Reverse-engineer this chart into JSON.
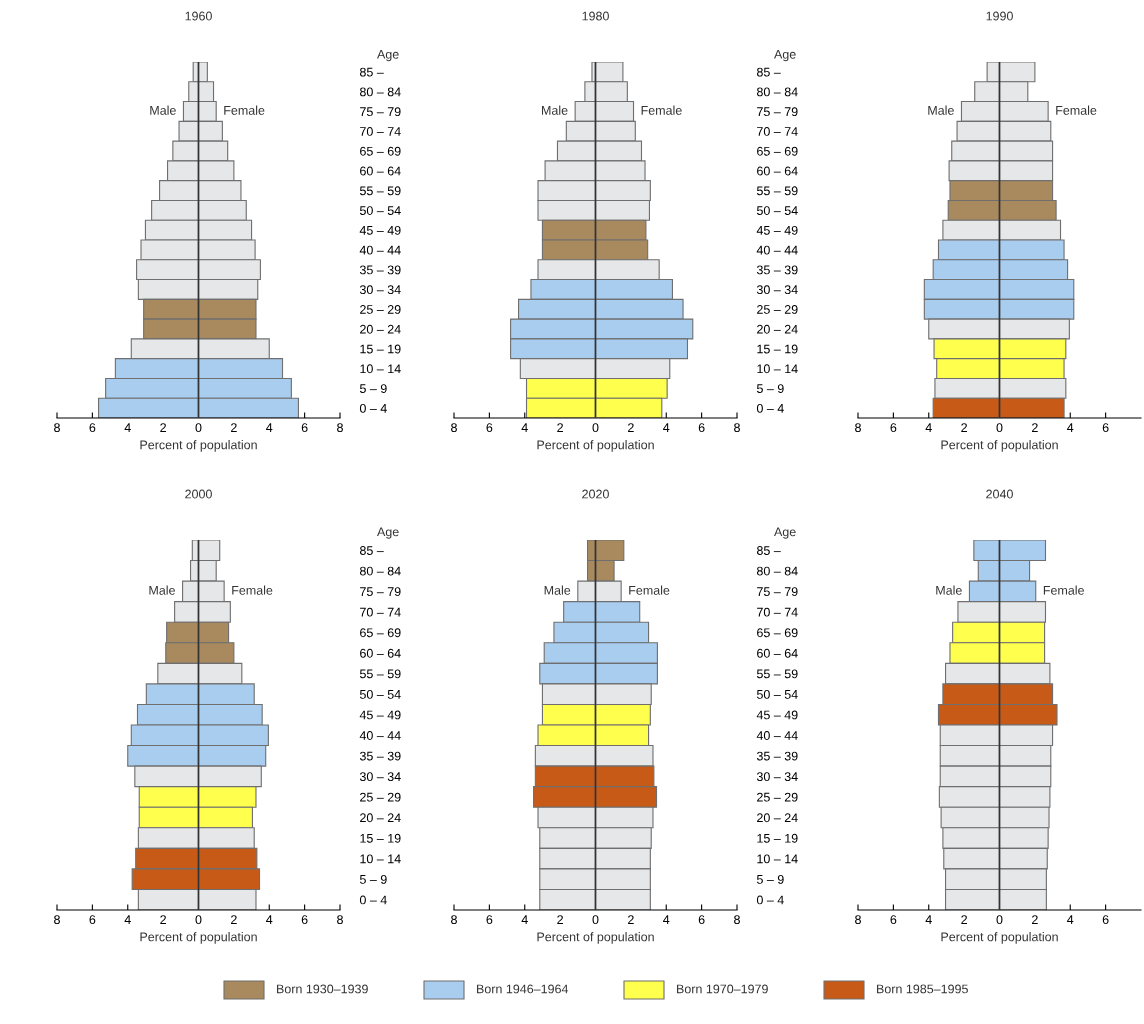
{
  "chart_data": [
    {
      "type": "bar",
      "orientation": "horizontal",
      "stacked": true,
      "title": "1960",
      "xlabel": "Percent of population",
      "ylabel": "Age",
      "categories": [
        "85 –",
        "80 – 84",
        "75 – 79",
        "70 – 74",
        "65 – 69",
        "60 – 64",
        "55 – 59",
        "50 – 54",
        "45 – 49",
        "40 – 44",
        "35 – 39",
        "30 – 34",
        "25 – 29",
        "20 – 24",
        "15 – 19",
        "10 – 14",
        "5 – 9",
        "0 – 4"
      ],
      "series": [
        {
          "name": "Male",
          "values": [
            -0.3,
            -0.55,
            -0.85,
            -1.1,
            -1.45,
            -1.75,
            -2.2,
            -2.65,
            -3.0,
            -3.25,
            -3.5,
            -3.4,
            -3.1,
            -3.1,
            -3.8,
            -4.7,
            -5.25,
            -5.65
          ],
          "colors": [
            "#e6e7e9",
            "#e6e7e9",
            "#e6e7e9",
            "#e6e7e9",
            "#e6e7e9",
            "#e6e7e9",
            "#e6e7e9",
            "#e6e7e9",
            "#e6e7e9",
            "#e6e7e9",
            "#e6e7e9",
            "#e6e7e9",
            "#a88a5e",
            "#a88a5e",
            "#e6e7e9",
            "#a9cdef",
            "#a9cdef",
            "#a9cdef"
          ]
        },
        {
          "name": "Female",
          "values": [
            0.5,
            0.85,
            1.0,
            1.35,
            1.65,
            2.0,
            2.4,
            2.7,
            3.0,
            3.2,
            3.5,
            3.35,
            3.25,
            3.25,
            4.0,
            4.75,
            5.25,
            5.65
          ],
          "colors": [
            "#e6e7e9",
            "#e6e7e9",
            "#e6e7e9",
            "#e6e7e9",
            "#e6e7e9",
            "#e6e7e9",
            "#e6e7e9",
            "#e6e7e9",
            "#e6e7e9",
            "#e6e7e9",
            "#e6e7e9",
            "#e6e7e9",
            "#a88a5e",
            "#a88a5e",
            "#e6e7e9",
            "#a9cdef",
            "#a9cdef",
            "#a9cdef"
          ]
        }
      ],
      "xlim": [
        -8,
        8
      ],
      "xticks": [
        {
          "value": -8,
          "label": "8"
        },
        {
          "value": -6,
          "label": "6"
        },
        {
          "value": -4,
          "label": "4"
        },
        {
          "value": -2,
          "label": "2"
        },
        0,
        2,
        4,
        6,
        8
      ],
      "ref_lines": [
        {
          "axis": "x",
          "value": 0,
          "color": "#333333"
        }
      ],
      "grid": false
    },
    {
      "type": "bar",
      "orientation": "horizontal",
      "stacked": true,
      "title": "1980",
      "xlabel": "Percent of population",
      "ylabel": "Age",
      "categories": [
        "85 –",
        "80 – 84",
        "75 – 79",
        "70 – 74",
        "65 – 69",
        "60 – 64",
        "55 – 59",
        "50 – 54",
        "45 – 49",
        "40 – 44",
        "35 – 39",
        "30 – 34",
        "25 – 29",
        "20 – 24",
        "15 – 19",
        "10 – 14",
        "5 – 9",
        "0 – 4"
      ],
      "series": [
        {
          "name": "Male",
          "values": [
            -0.2,
            -0.6,
            -1.15,
            -1.65,
            -2.15,
            -2.85,
            -3.25,
            -3.25,
            -3.0,
            -3.0,
            -3.25,
            -3.65,
            -4.35,
            -4.8,
            -4.8,
            -4.25,
            -3.9,
            -3.9
          ],
          "colors": [
            "#e6e7e9",
            "#e6e7e9",
            "#e6e7e9",
            "#e6e7e9",
            "#e6e7e9",
            "#e6e7e9",
            "#e6e7e9",
            "#e6e7e9",
            "#a88a5e",
            "#a88a5e",
            "#e6e7e9",
            "#a9cdef",
            "#a9cdef",
            "#a9cdef",
            "#a9cdef",
            "#e6e7e9",
            "#ffff4d",
            "#ffff4d"
          ]
        },
        {
          "name": "Female",
          "values": [
            1.55,
            1.8,
            2.15,
            2.25,
            2.6,
            2.8,
            3.1,
            3.05,
            2.85,
            2.95,
            3.6,
            4.35,
            4.95,
            5.5,
            5.2,
            4.2,
            4.05,
            3.75
          ],
          "colors": [
            "#e6e7e9",
            "#e6e7e9",
            "#e6e7e9",
            "#e6e7e9",
            "#e6e7e9",
            "#e6e7e9",
            "#e6e7e9",
            "#e6e7e9",
            "#a88a5e",
            "#a88a5e",
            "#e6e7e9",
            "#a9cdef",
            "#a9cdef",
            "#a9cdef",
            "#a9cdef",
            "#e6e7e9",
            "#ffff4d",
            "#ffff4d"
          ]
        }
      ],
      "xlim": [
        -8,
        8
      ],
      "xticks": [
        {
          "value": -8,
          "label": "8"
        },
        {
          "value": -6,
          "label": "6"
        },
        {
          "value": -4,
          "label": "4"
        },
        {
          "value": -2,
          "label": "2"
        },
        0,
        2,
        4,
        6,
        8
      ],
      "ref_lines": [
        {
          "axis": "x",
          "value": 0,
          "color": "#333333"
        }
      ],
      "grid": false
    },
    {
      "type": "bar",
      "orientation": "horizontal",
      "stacked": true,
      "title": "1990",
      "xlabel": "Percent of population",
      "categories": [
        null,
        null,
        null,
        null,
        null,
        null,
        null,
        null,
        null,
        null,
        null,
        null,
        null,
        null,
        null,
        null,
        null,
        null
      ],
      "series": [
        {
          "name": "Male",
          "values": [
            -0.7,
            -1.4,
            -2.15,
            -2.4,
            -2.7,
            -2.85,
            -2.8,
            -2.9,
            -3.2,
            -3.45,
            -3.75,
            -4.25,
            -4.25,
            -4.0,
            -3.7,
            -3.55,
            -3.65,
            -3.75
          ],
          "colors": [
            "#e6e7e9",
            "#e6e7e9",
            "#e6e7e9",
            "#e6e7e9",
            "#e6e7e9",
            "#e6e7e9",
            "#a88a5e",
            "#a88a5e",
            "#e6e7e9",
            "#a9cdef",
            "#a9cdef",
            "#a9cdef",
            "#a9cdef",
            "#e6e7e9",
            "#ffff4d",
            "#ffff4d",
            "#e6e7e9",
            "#c85a17"
          ]
        },
        {
          "name": "Female",
          "values": [
            2.0,
            1.6,
            2.75,
            2.9,
            3.0,
            3.0,
            3.0,
            3.2,
            3.45,
            3.65,
            3.85,
            4.2,
            4.2,
            3.95,
            3.75,
            3.65,
            3.75,
            3.65
          ],
          "colors": [
            "#e6e7e9",
            "#e6e7e9",
            "#e6e7e9",
            "#e6e7e9",
            "#e6e7e9",
            "#e6e7e9",
            "#a88a5e",
            "#a88a5e",
            "#e6e7e9",
            "#a9cdef",
            "#a9cdef",
            "#a9cdef",
            "#a9cdef",
            "#e6e7e9",
            "#ffff4d",
            "#ffff4d",
            "#e6e7e9",
            "#c85a17"
          ]
        }
      ],
      "xlim": [
        -8,
        8
      ],
      "xticks": [
        {
          "value": -8,
          "label": "8"
        },
        {
          "value": -6,
          "label": "6"
        },
        {
          "value": -4,
          "label": "4"
        },
        {
          "value": -2,
          "label": "2"
        },
        0,
        2,
        4,
        6
      ],
      "ref_lines": [
        {
          "axis": "x",
          "value": 0,
          "color": "#333333"
        }
      ],
      "grid": false
    },
    {
      "type": "bar",
      "orientation": "horizontal",
      "stacked": true,
      "title": "2000",
      "xlabel": "Percent of population",
      "ylabel": "Age",
      "categories": [
        "85 –",
        "80 – 84",
        "75 – 79",
        "70 – 74",
        "65 – 69",
        "60 – 64",
        "55 – 59",
        "50 – 54",
        "45 – 49",
        "40 – 44",
        "35 – 39",
        "30 – 34",
        "25 – 29",
        "20 – 24",
        "15 – 19",
        "10 – 14",
        "5 – 9",
        "0 – 4"
      ],
      "series": [
        {
          "name": "Male",
          "values": [
            -0.35,
            -0.45,
            -0.9,
            -1.35,
            -1.8,
            -1.85,
            -2.3,
            -2.95,
            -3.45,
            -3.8,
            -4.0,
            -3.6,
            -3.35,
            -3.35,
            -3.4,
            -3.55,
            -3.75,
            -3.4
          ],
          "colors": [
            "#e6e7e9",
            "#e6e7e9",
            "#e6e7e9",
            "#e6e7e9",
            "#a88a5e",
            "#a88a5e",
            "#e6e7e9",
            "#a9cdef",
            "#a9cdef",
            "#a9cdef",
            "#a9cdef",
            "#e6e7e9",
            "#ffff4d",
            "#ffff4d",
            "#e6e7e9",
            "#c85a17",
            "#c85a17",
            "#e6e7e9"
          ]
        },
        {
          "name": "Female",
          "values": [
            1.2,
            1.0,
            1.45,
            1.8,
            1.7,
            2.0,
            2.45,
            3.15,
            3.6,
            3.95,
            3.8,
            3.55,
            3.25,
            3.05,
            3.15,
            3.3,
            3.45,
            3.25
          ],
          "colors": [
            "#e6e7e9",
            "#e6e7e9",
            "#e6e7e9",
            "#e6e7e9",
            "#a88a5e",
            "#a88a5e",
            "#e6e7e9",
            "#a9cdef",
            "#a9cdef",
            "#a9cdef",
            "#a9cdef",
            "#e6e7e9",
            "#ffff4d",
            "#ffff4d",
            "#e6e7e9",
            "#c85a17",
            "#c85a17",
            "#e6e7e9"
          ]
        }
      ],
      "xlim": [
        -8,
        8
      ],
      "xticks": [
        {
          "value": -8,
          "label": "8"
        },
        {
          "value": -6,
          "label": "6"
        },
        {
          "value": -4,
          "label": "4"
        },
        {
          "value": -2,
          "label": "2"
        },
        0,
        2,
        4,
        6,
        8
      ],
      "ref_lines": [
        {
          "axis": "x",
          "value": 0,
          "color": "#333333"
        }
      ],
      "grid": false
    },
    {
      "type": "bar",
      "orientation": "horizontal",
      "stacked": true,
      "title": "2020",
      "xlabel": "Percent of population",
      "ylabel": "Age",
      "categories": [
        "85 –",
        "80 – 84",
        "75 – 79",
        "70 – 74",
        "65 – 69",
        "60 – 64",
        "55 – 59",
        "50 – 54",
        "45 – 49",
        "40 – 44",
        "35 – 39",
        "30 – 34",
        "25 – 29",
        "20 – 24",
        "15 – 19",
        "10 – 14",
        "5 – 9",
        "0 – 4"
      ],
      "series": [
        {
          "name": "Male",
          "values": [
            -0.45,
            -0.45,
            -1.0,
            -1.8,
            -2.35,
            -2.9,
            -3.15,
            -3.0,
            -3.0,
            -3.25,
            -3.4,
            -3.4,
            -3.5,
            -3.25,
            -3.15,
            -3.15,
            -3.15,
            -3.15
          ],
          "colors": [
            "#a88a5e",
            "#a88a5e",
            "#e6e7e9",
            "#a9cdef",
            "#a9cdef",
            "#a9cdef",
            "#a9cdef",
            "#e6e7e9",
            "#ffff4d",
            "#ffff4d",
            "#e6e7e9",
            "#c85a17",
            "#c85a17",
            "#e6e7e9",
            "#e6e7e9",
            "#e6e7e9",
            "#e6e7e9",
            "#e6e7e9"
          ]
        },
        {
          "name": "Female",
          "values": [
            1.6,
            1.05,
            1.45,
            2.5,
            3.0,
            3.5,
            3.5,
            3.15,
            3.1,
            3.0,
            3.25,
            3.3,
            3.45,
            3.25,
            3.15,
            3.1,
            3.1,
            3.1
          ],
          "colors": [
            "#a88a5e",
            "#a88a5e",
            "#e6e7e9",
            "#a9cdef",
            "#a9cdef",
            "#a9cdef",
            "#a9cdef",
            "#e6e7e9",
            "#ffff4d",
            "#ffff4d",
            "#e6e7e9",
            "#c85a17",
            "#c85a17",
            "#e6e7e9",
            "#e6e7e9",
            "#e6e7e9",
            "#e6e7e9",
            "#e6e7e9"
          ]
        }
      ],
      "xlim": [
        -8,
        8
      ],
      "xticks": [
        {
          "value": -8,
          "label": "8"
        },
        {
          "value": -6,
          "label": "6"
        },
        {
          "value": -4,
          "label": "4"
        },
        {
          "value": -2,
          "label": "2"
        },
        0,
        2,
        4,
        6,
        8
      ],
      "ref_lines": [
        {
          "axis": "x",
          "value": 0,
          "color": "#333333"
        }
      ],
      "grid": false
    },
    {
      "type": "bar",
      "orientation": "horizontal",
      "stacked": true,
      "title": "2040",
      "xlabel": "Percent of population",
      "categories": [
        null,
        null,
        null,
        null,
        null,
        null,
        null,
        null,
        null,
        null,
        null,
        null,
        null,
        null,
        null,
        null,
        null,
        null
      ],
      "series": [
        {
          "name": "Male",
          "values": [
            -1.45,
            -1.2,
            -1.7,
            -2.35,
            -2.65,
            -2.8,
            -3.05,
            -3.2,
            -3.45,
            -3.35,
            -3.35,
            -3.35,
            -3.4,
            -3.3,
            -3.2,
            -3.15,
            -3.05,
            -3.05
          ],
          "colors": [
            "#a9cdef",
            "#a9cdef",
            "#a9cdef",
            "#e6e7e9",
            "#ffff4d",
            "#ffff4d",
            "#e6e7e9",
            "#c85a17",
            "#c85a17",
            "#e6e7e9",
            "#e6e7e9",
            "#e6e7e9",
            "#e6e7e9",
            "#e6e7e9",
            "#e6e7e9",
            "#e6e7e9",
            "#e6e7e9",
            "#e6e7e9"
          ]
        },
        {
          "name": "Female",
          "values": [
            2.6,
            1.7,
            2.05,
            2.6,
            2.55,
            2.55,
            2.85,
            3.0,
            3.25,
            3.0,
            2.9,
            2.9,
            2.85,
            2.8,
            2.75,
            2.7,
            2.65,
            2.65
          ],
          "colors": [
            "#a9cdef",
            "#a9cdef",
            "#a9cdef",
            "#e6e7e9",
            "#ffff4d",
            "#ffff4d",
            "#e6e7e9",
            "#c85a17",
            "#c85a17",
            "#e6e7e9",
            "#e6e7e9",
            "#e6e7e9",
            "#e6e7e9",
            "#e6e7e9",
            "#e6e7e9",
            "#e6e7e9",
            "#e6e7e9",
            "#e6e7e9"
          ]
        }
      ],
      "xlim": [
        -8,
        8
      ],
      "xticks": [
        {
          "value": -8,
          "label": "8"
        },
        {
          "value": -6,
          "label": "6"
        },
        {
          "value": -4,
          "label": "4"
        },
        {
          "value": -2,
          "label": "2"
        },
        0,
        2,
        4,
        6
      ],
      "ref_lines": [
        {
          "axis": "x",
          "value": 0,
          "color": "#333333"
        }
      ],
      "grid": false
    },
    {
      "type": "other",
      "categories": [
        "Born 1930–1939",
        "Born 1946–1964",
        "Born 1970–1979",
        "Born 1985–1995"
      ],
      "colors": [
        "#a88a5e",
        "#a9cdef",
        "#ffff4d",
        "#c85a17"
      ]
    }
  ]
}
